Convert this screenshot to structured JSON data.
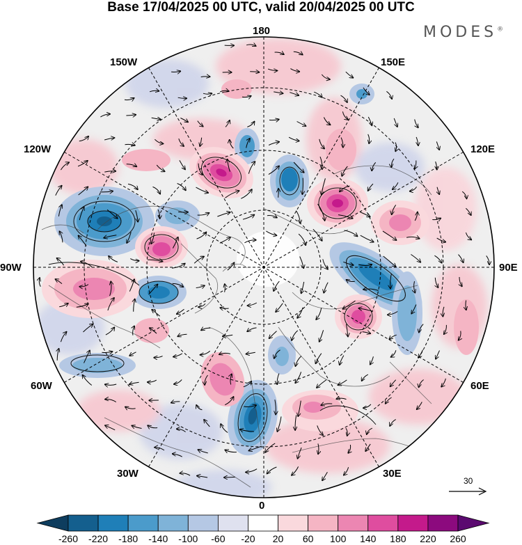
{
  "title": "Base 17/04/2025 00 UTC, valid 20/04/2025 00 UTC",
  "brand": "MODES",
  "brand_mark": "®",
  "meridian_labels": {
    "lon_180": "180",
    "lon_150w": "150W",
    "lon_150e": "150E",
    "lon_120w": "120W",
    "lon_120e": "120E",
    "lon_90w": "90W",
    "lon_90e": "90E",
    "lon_60w": "60W",
    "lon_60e": "60E",
    "lon_30w": "30W",
    "lon_30e": "30E",
    "lon_0": "0"
  },
  "reference_vector": {
    "value": "30"
  },
  "colorbar": {
    "labels": [
      "-260",
      "-220",
      "-180",
      "-140",
      "-100",
      "-60",
      "-20",
      "20",
      "60",
      "100",
      "140",
      "180",
      "220",
      "260"
    ],
    "colors": [
      "#0e3d5e",
      "#145f8e",
      "#1f7fb8",
      "#4b9bcb",
      "#7fb3d8",
      "#b5c8e4",
      "#dfe1ef",
      "#ffffff",
      "#fad9dd",
      "#f5b5c4",
      "#ec86b2",
      "#df4d9f",
      "#c41a8b",
      "#8c0a7e",
      "#5b0a70"
    ]
  },
  "anomaly_field": {
    "projection": "north-polar-stereographic",
    "positive_color": "#df4d9f",
    "negative_color": "#1f7fb8"
  }
}
